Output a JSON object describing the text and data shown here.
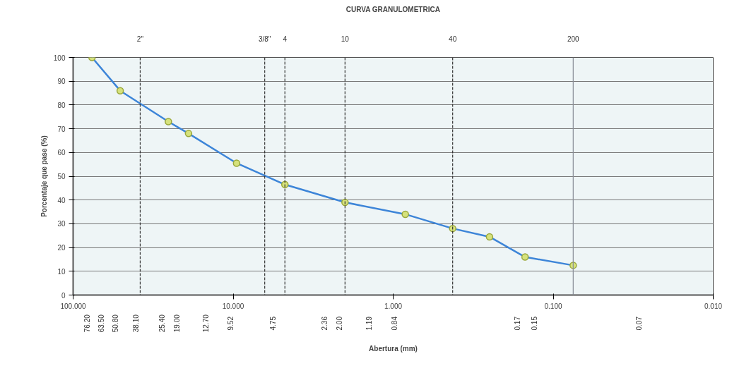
{
  "chart_data": {
    "type": "line",
    "title": "CURVA GRANULOMETRICA",
    "xlabel": "Abertura (mm)",
    "ylabel": "Porcentaje que pase (%)",
    "x": [
      76.2,
      50.8,
      25.4,
      19.0,
      9.52,
      4.75,
      2.0,
      0.84,
      0.425,
      0.25,
      0.15,
      0.075
    ],
    "series": [
      {
        "color": "#3d85d8",
        "values": [
          100,
          86,
          73,
          68,
          55.5,
          46.5,
          39,
          34,
          28,
          24.5,
          16,
          12.5
        ]
      }
    ],
    "log": "x",
    "xlim": [
      100,
      0.01
    ],
    "xticks": [
      {
        "value": 100,
        "label": "100.000"
      },
      {
        "value": 10,
        "label": "10.000"
      },
      {
        "value": 1,
        "label": "1.000"
      },
      {
        "value": 0.1,
        "label": "0.100"
      },
      {
        "value": 0.01,
        "label": "0.010"
      }
    ],
    "ylim": [
      0,
      100
    ],
    "yticks": [
      0,
      10,
      20,
      30,
      40,
      50,
      60,
      70,
      80,
      90,
      100
    ],
    "grid": "y",
    "marker": "circle",
    "line_style": "solid",
    "ref_lines": [
      {
        "axis": "x",
        "value": 38.1,
        "line_style": "dashed",
        "color": "#333333"
      },
      {
        "axis": "x",
        "value": 6.35,
        "line_style": "dashed",
        "color": "#333333"
      },
      {
        "axis": "x",
        "value": 4.75,
        "line_style": "dashed",
        "color": "#333333"
      },
      {
        "axis": "x",
        "value": 2.0,
        "line_style": "dashed",
        "color": "#333333"
      },
      {
        "axis": "x",
        "value": 0.425,
        "line_style": "dashed",
        "color": "#333333"
      },
      {
        "axis": "x",
        "value": 0.075,
        "line_style": "solid",
        "color": "#8a8f99"
      }
    ],
    "annotations": [
      "2\"",
      "3/8\"",
      "4",
      "10",
      "40",
      "200",
      "76.20",
      "63.50",
      "50.80",
      "38.10",
      "25.40",
      "19.00",
      "12.70",
      "9.52",
      "4.75",
      "2.36",
      "2.00",
      "1.19",
      "0.84",
      "0.17",
      "0.15",
      "0.07"
    ]
  }
}
